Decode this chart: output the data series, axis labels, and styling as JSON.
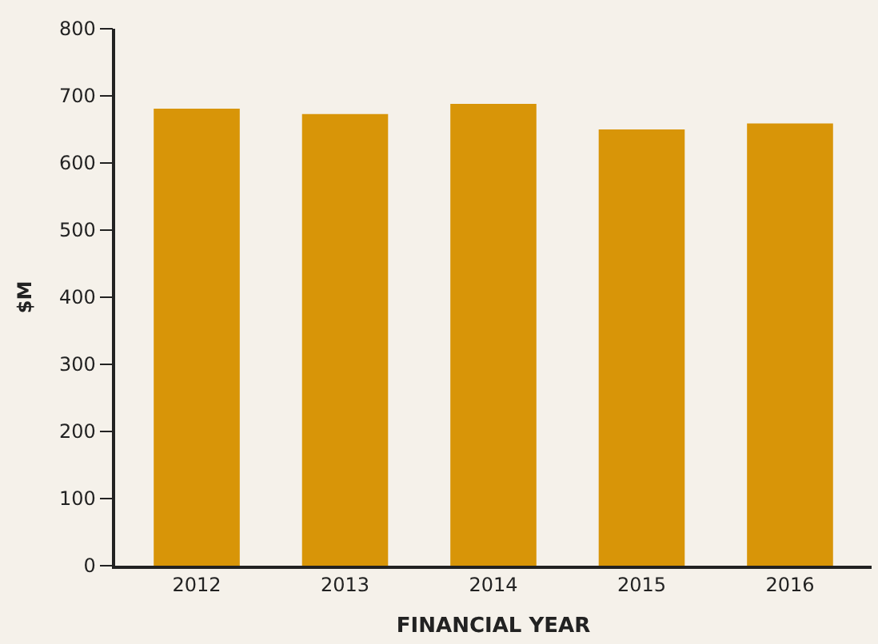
{
  "chart_data": {
    "type": "bar",
    "xlabel": "FINANCIAL YEAR",
    "ylabel": "$M",
    "categories": [
      "2012",
      "2013",
      "2014",
      "2015",
      "2016"
    ],
    "values": [
      681,
      673,
      688,
      650,
      659
    ],
    "color": "#d89508",
    "ylim": [
      0,
      800
    ],
    "yticks": [
      0,
      100,
      200,
      300,
      400,
      500,
      600,
      700,
      800
    ],
    "grid": false,
    "legend": false
  }
}
